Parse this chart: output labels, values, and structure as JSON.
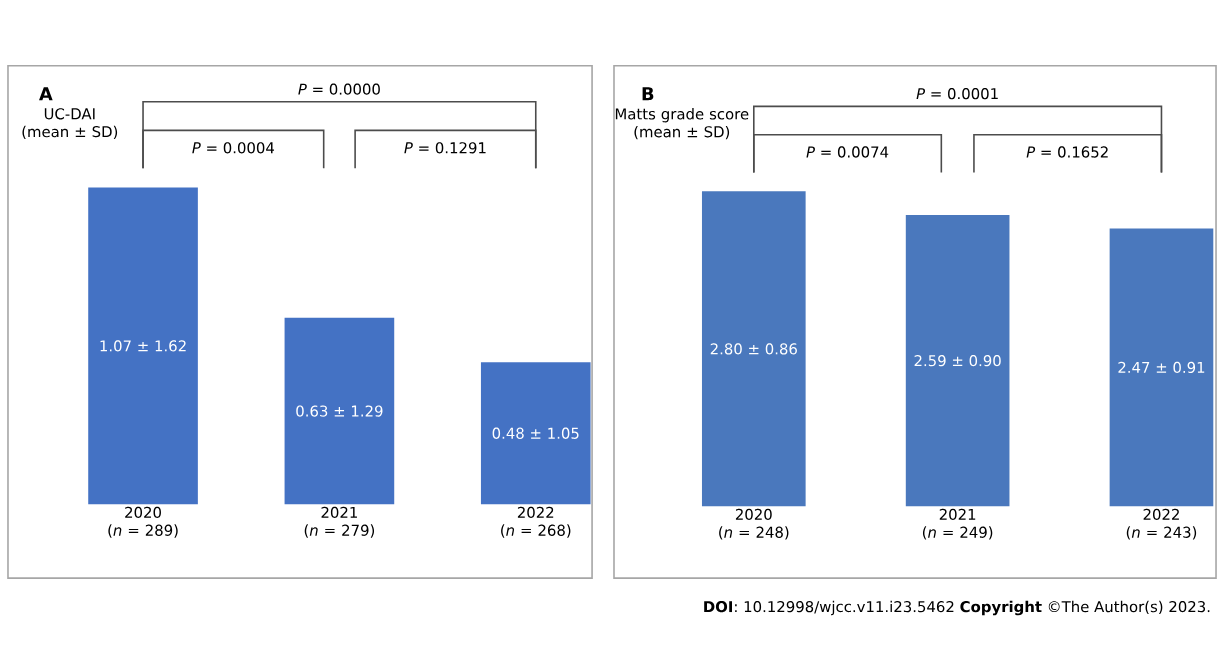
{
  "chart_data": [
    {
      "type": "bar",
      "title": "A",
      "ylabel": "UC-DAI (mean ± SD)",
      "categories": [
        "2020 (*n* = 289)",
        "2021 (*n* = 279)",
        "2022 (*n* = 268)"
      ],
      "values": [
        1.07,
        0.63,
        0.48
      ],
      "value_labels": [
        "1.07 ± 1.62",
        "0.63 ± 1.29",
        "0.48 ± 1.05"
      ],
      "color": "#4472c4",
      "annotations": [
        "*P* = 0.0000",
        "*P* = 0.0004",
        "*P* = 0.1291"
      ]
    },
    {
      "type": "bar",
      "title": "B",
      "ylabel": "Matts grade score (mean ± SD)",
      "categories": [
        "2020 (*n* = 248)",
        "2021 (*n* = 249)",
        "2022 (*n* = 243)"
      ],
      "values": [
        2.8,
        2.59,
        2.47
      ],
      "value_labels": [
        "2.80 ± 0.86",
        "2.59 ± 0.90",
        "2.47 ± 0.91"
      ],
      "color": "#4a78bd",
      "annotations": [
        "*P* = 0.0001",
        "*P* = 0.0074",
        "*P* = 0.1652",
        "**DOI**: 10.12998/wjcc.v11.i23.5462 **Copyright** ©The Author(s) 2023."
      ]
    }
  ]
}
